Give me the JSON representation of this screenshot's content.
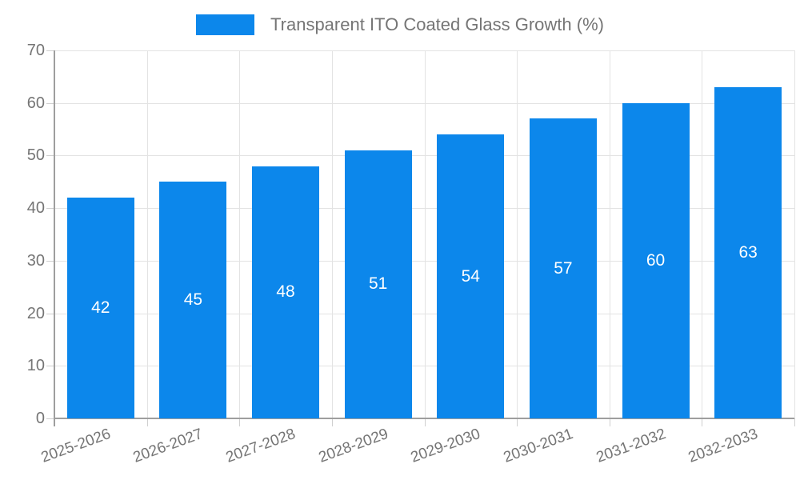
{
  "legend": {
    "label": "Transparent ITO Coated Glass Growth (%)"
  },
  "chart_data": {
    "type": "bar",
    "title": "",
    "xlabel": "",
    "ylabel": "",
    "categories": [
      "2025-2026",
      "2026-2027",
      "2027-2028",
      "2028-2029",
      "2029-2030",
      "2030-2031",
      "2031-2032",
      "2032-2033"
    ],
    "series": [
      {
        "name": "Transparent ITO Coated Glass Growth (%)",
        "values": [
          42,
          45,
          48,
          51,
          54,
          57,
          60,
          63
        ]
      }
    ],
    "value_labels_shown": true,
    "yticks": [
      0,
      10,
      20,
      30,
      40,
      50,
      60,
      70
    ],
    "ylim": [
      0,
      70
    ],
    "grid": true,
    "legend_position": "top-center",
    "colors": {
      "bar": "#0c87eb",
      "value_label": "#ffffff",
      "axis_text": "#757575",
      "grid_line": "#e3e3e3",
      "axis_line": "#9e9e9e",
      "tick_line": "#cfcfcf",
      "background": "#ffffff"
    }
  }
}
